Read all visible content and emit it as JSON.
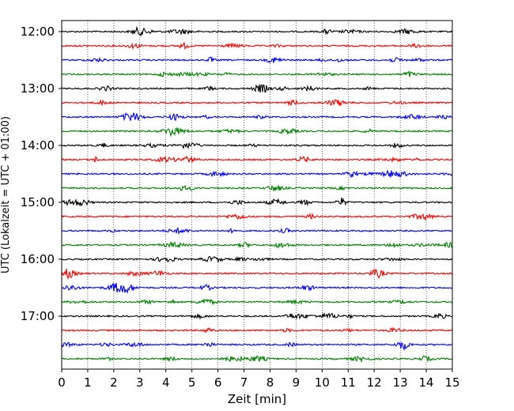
{
  "chart_data": {
    "type": "line",
    "title": "",
    "xlabel": "Zeit  [min]",
    "ylabel": "UTC (Lokalzeit = UTC + 01:00)",
    "xlim": [
      0,
      15
    ],
    "x_ticks": [
      "0",
      "1",
      "2",
      "3",
      "4",
      "5",
      "6",
      "7",
      "8",
      "9",
      "10",
      "11",
      "12",
      "13",
      "14",
      "15"
    ],
    "y_tick_labels": [
      "12:00",
      "13:00",
      "14:00",
      "15:00",
      "16:00",
      "17:00"
    ],
    "traces_per_hour": 4,
    "trace_start_times": [
      "12:00",
      "12:15",
      "12:30",
      "12:45",
      "13:00",
      "13:15",
      "13:30",
      "13:45",
      "14:00",
      "14:15",
      "14:30",
      "14:45",
      "15:00",
      "15:15",
      "15:30",
      "15:45",
      "16:00",
      "16:15",
      "16:30",
      "16:45",
      "17:00",
      "17:15",
      "17:30",
      "17:45"
    ],
    "trace_colors": [
      "#000000",
      "#ff0000",
      "#0000ff",
      "#008000"
    ],
    "grid": {
      "vertical": true,
      "style": "dotted"
    }
  }
}
